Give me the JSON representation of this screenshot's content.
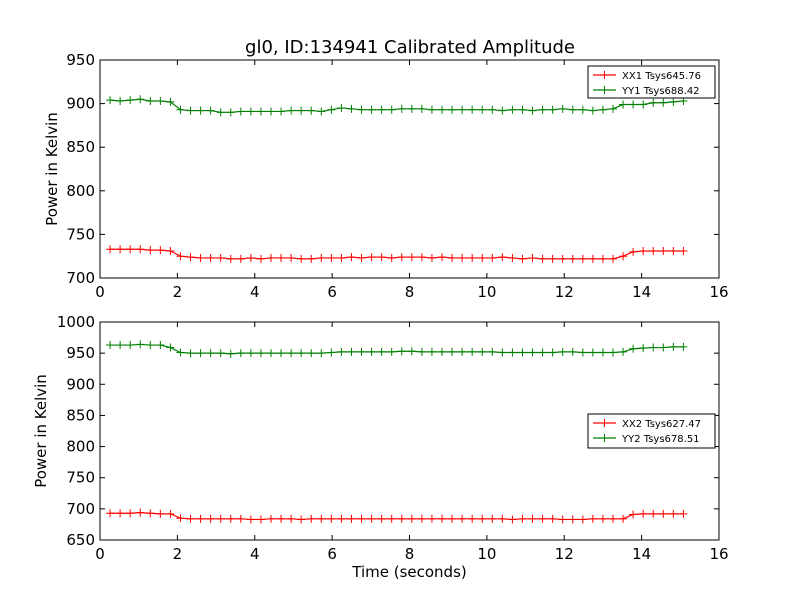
{
  "figure": {
    "title": "gl0, ID:134941 Calibrated Amplitude"
  },
  "colors": {
    "red_series": "#ff0000",
    "green_series": "#008000",
    "background": "#ffffff",
    "axes": "#000000"
  },
  "chart_data": [
    {
      "type": "line",
      "title": "gl0, ID:134941 Calibrated Amplitude",
      "xlabel": "",
      "ylabel": "Power in Kelvin",
      "xlim": [
        0,
        16
      ],
      "ylim": [
        700,
        950
      ],
      "xticks": [
        0,
        2,
        4,
        6,
        8,
        10,
        12,
        14,
        16
      ],
      "yticks": [
        700,
        750,
        800,
        850,
        900,
        950
      ],
      "xtick_labels": [
        "0",
        "2",
        "4",
        "6",
        "8",
        "10",
        "12",
        "14",
        "16"
      ],
      "ytick_labels": [
        "700",
        "750",
        "800",
        "850",
        "900",
        "950"
      ],
      "grid": false,
      "legend_position": "top-right",
      "markers": "plus",
      "x": [
        0.26,
        0.52,
        0.78,
        1.04,
        1.3,
        1.56,
        1.82,
        2.08,
        2.34,
        2.6,
        2.86,
        3.12,
        3.38,
        3.64,
        3.9,
        4.16,
        4.42,
        4.68,
        4.94,
        5.2,
        5.46,
        5.72,
        5.98,
        6.24,
        6.5,
        6.76,
        7.02,
        7.28,
        7.54,
        7.8,
        8.06,
        8.32,
        8.58,
        8.84,
        9.1,
        9.36,
        9.62,
        9.88,
        10.14,
        10.4,
        10.66,
        10.92,
        11.18,
        11.44,
        11.7,
        11.96,
        12.22,
        12.48,
        12.74,
        13.0,
        13.26,
        13.52,
        13.78,
        14.04,
        14.3,
        14.56,
        14.82,
        15.08
      ],
      "series": [
        {
          "name": "XX1 Tsys645.76",
          "color": "#ff0000",
          "values": [
            733,
            733,
            733,
            733,
            732,
            732,
            731,
            725,
            724,
            723,
            723,
            723,
            722,
            722,
            723,
            722,
            723,
            723,
            723,
            722,
            722,
            723,
            723,
            723,
            724,
            723,
            724,
            724,
            723,
            724,
            724,
            724,
            723,
            724,
            723,
            723,
            723,
            723,
            723,
            724,
            723,
            722,
            723,
            722,
            722,
            722,
            722,
            722,
            722,
            722,
            722,
            725,
            730,
            731,
            731,
            731,
            731,
            731
          ]
        },
        {
          "name": "YY1 Tsys688.42",
          "color": "#008000",
          "values": [
            904,
            903,
            904,
            905,
            903,
            903,
            902,
            893,
            892,
            892,
            892,
            890,
            890,
            891,
            891,
            891,
            891,
            891,
            892,
            892,
            892,
            891,
            893,
            895,
            894,
            893,
            893,
            893,
            893,
            894,
            894,
            894,
            893,
            893,
            893,
            893,
            893,
            893,
            893,
            892,
            893,
            893,
            892,
            893,
            893,
            894,
            893,
            893,
            892,
            893,
            894,
            899,
            899,
            899,
            901,
            901,
            902,
            903
          ]
        }
      ]
    },
    {
      "type": "line",
      "title": "",
      "xlabel": "Time (seconds)",
      "ylabel": "Power in Kelvin",
      "xlim": [
        0,
        16
      ],
      "ylim": [
        650,
        1000
      ],
      "xticks": [
        0,
        2,
        4,
        6,
        8,
        10,
        12,
        14,
        16
      ],
      "yticks": [
        650,
        700,
        750,
        800,
        850,
        900,
        950,
        1000
      ],
      "xtick_labels": [
        "0",
        "2",
        "4",
        "6",
        "8",
        "10",
        "12",
        "14",
        "16"
      ],
      "ytick_labels": [
        "650",
        "700",
        "750",
        "800",
        "850",
        "900",
        "950",
        "1000"
      ],
      "grid": false,
      "legend_position": "center-right",
      "markers": "plus",
      "x": [
        0.26,
        0.52,
        0.78,
        1.04,
        1.3,
        1.56,
        1.82,
        2.08,
        2.34,
        2.6,
        2.86,
        3.12,
        3.38,
        3.64,
        3.9,
        4.16,
        4.42,
        4.68,
        4.94,
        5.2,
        5.46,
        5.72,
        5.98,
        6.24,
        6.5,
        6.76,
        7.02,
        7.28,
        7.54,
        7.8,
        8.06,
        8.32,
        8.58,
        8.84,
        9.1,
        9.36,
        9.62,
        9.88,
        10.14,
        10.4,
        10.66,
        10.92,
        11.18,
        11.44,
        11.7,
        11.96,
        12.22,
        12.48,
        12.74,
        13.0,
        13.26,
        13.52,
        13.78,
        14.04,
        14.3,
        14.56,
        14.82,
        15.08
      ],
      "series": [
        {
          "name": "XX2 Tsys627.47",
          "color": "#ff0000",
          "values": [
            693,
            693,
            693,
            694,
            693,
            692,
            692,
            685,
            684,
            684,
            684,
            684,
            684,
            684,
            683,
            683,
            684,
            684,
            684,
            683,
            684,
            684,
            684,
            684,
            684,
            684,
            684,
            684,
            684,
            684,
            684,
            684,
            684,
            684,
            684,
            684,
            684,
            684,
            684,
            684,
            683,
            684,
            684,
            684,
            684,
            683,
            683,
            683,
            684,
            684,
            684,
            684,
            691,
            692,
            692,
            692,
            692,
            692
          ]
        },
        {
          "name": "YY2 Tsys678.51",
          "color": "#008000",
          "values": [
            963,
            963,
            963,
            964,
            963,
            963,
            959,
            951,
            950,
            950,
            950,
            950,
            949,
            950,
            950,
            950,
            950,
            950,
            950,
            950,
            950,
            950,
            951,
            952,
            952,
            952,
            952,
            952,
            952,
            953,
            953,
            952,
            952,
            952,
            952,
            952,
            952,
            952,
            952,
            951,
            951,
            951,
            951,
            951,
            951,
            952,
            952,
            951,
            951,
            951,
            951,
            952,
            957,
            958,
            959,
            959,
            960,
            960
          ]
        }
      ]
    }
  ]
}
